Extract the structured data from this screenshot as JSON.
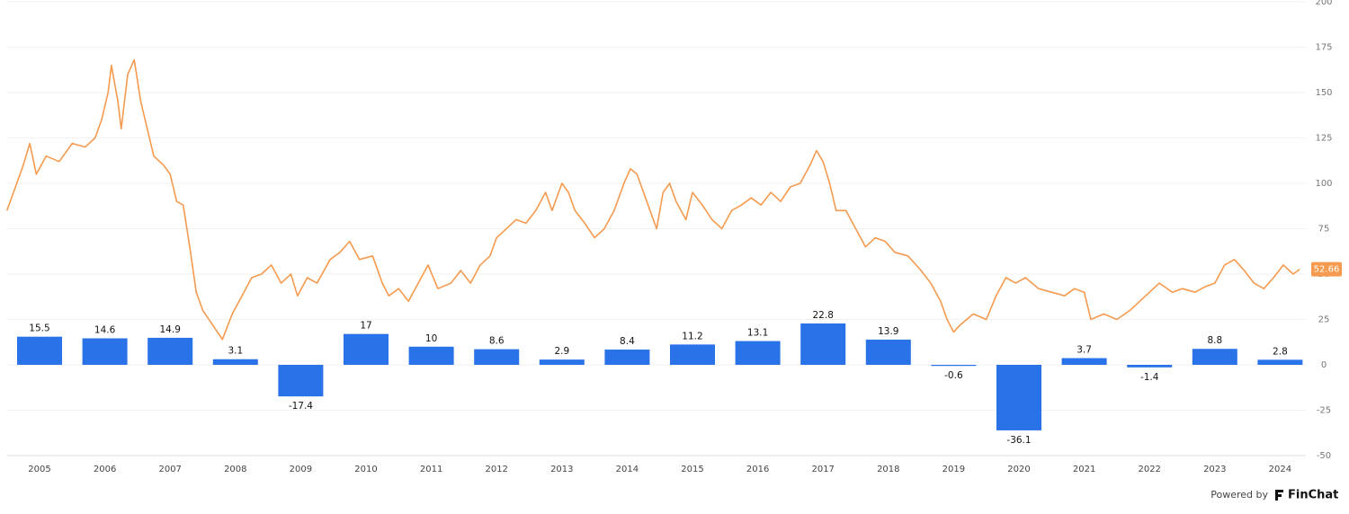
{
  "chart_data": {
    "type": "bar",
    "categories": [
      "2005",
      "2006",
      "2007",
      "2008",
      "2009",
      "2010",
      "2011",
      "2012",
      "2013",
      "2014",
      "2015",
      "2016",
      "2017",
      "2018",
      "2019",
      "2020",
      "2021",
      "2022",
      "2023",
      "2024"
    ],
    "values": [
      15.5,
      14.6,
      14.9,
      3.1,
      -17.4,
      17,
      10,
      8.6,
      2.9,
      8.4,
      11.2,
      13.1,
      22.8,
      13.9,
      -0.6,
      -36.1,
      3.7,
      -1.4,
      8.8,
      2.8
    ],
    "color": "#2a72e8",
    "line": {
      "type": "line",
      "color": "#f59a4f",
      "x": [
        2004.5,
        2004.6,
        2004.75,
        2004.85,
        2004.95,
        2005.1,
        2005.3,
        2005.5,
        2005.7,
        2005.85,
        2005.95,
        2006.05,
        2006.1,
        2006.2,
        2006.25,
        2006.35,
        2006.45,
        2006.55,
        2006.65,
        2006.75,
        2006.9,
        2007.0,
        2007.1,
        2007.2,
        2007.3,
        2007.4,
        2007.5,
        2007.65,
        2007.8,
        2007.95,
        2008.1,
        2008.25,
        2008.4,
        2008.55,
        2008.7,
        2008.85,
        2008.95,
        2009.1,
        2009.25,
        2009.45,
        2009.6,
        2009.75,
        2009.9,
        2010.1,
        2010.25,
        2010.35,
        2010.5,
        2010.65,
        2010.8,
        2010.95,
        2011.1,
        2011.3,
        2011.45,
        2011.6,
        2011.75,
        2011.9,
        2012.0,
        2012.15,
        2012.3,
        2012.45,
        2012.6,
        2012.75,
        2012.85,
        2013.0,
        2013.1,
        2013.2,
        2013.35,
        2013.5,
        2013.65,
        2013.8,
        2013.95,
        2014.05,
        2014.15,
        2014.3,
        2014.45,
        2014.55,
        2014.65,
        2014.75,
        2014.9,
        2015.0,
        2015.15,
        2015.3,
        2015.45,
        2015.6,
        2015.75,
        2015.9,
        2016.05,
        2016.2,
        2016.35,
        2016.5,
        2016.65,
        2016.8,
        2016.9,
        2017.0,
        2017.1,
        2017.2,
        2017.35,
        2017.5,
        2017.65,
        2017.8,
        2017.95,
        2018.1,
        2018.3,
        2018.5,
        2018.65,
        2018.8,
        2018.9,
        2019.0,
        2019.1,
        2019.3,
        2019.5,
        2019.65,
        2019.8,
        2019.95,
        2020.1,
        2020.3,
        2020.5,
        2020.7,
        2020.85,
        2021.0,
        2021.1,
        2021.3,
        2021.5,
        2021.7,
        2021.85,
        2022.0,
        2022.15,
        2022.35,
        2022.5,
        2022.7,
        2022.85,
        2023.0,
        2023.15,
        2023.3,
        2023.45,
        2023.6,
        2023.75,
        2023.9,
        2024.05,
        2024.2,
        2024.3
      ],
      "values": [
        85,
        95,
        110,
        122,
        105,
        115,
        112,
        122,
        120,
        125,
        135,
        150,
        165,
        145,
        130,
        160,
        168,
        145,
        130,
        115,
        110,
        105,
        90,
        88,
        65,
        40,
        30,
        22,
        14,
        28,
        38,
        48,
        50,
        55,
        45,
        50,
        38,
        48,
        45,
        58,
        62,
        68,
        58,
        60,
        45,
        38,
        42,
        35,
        45,
        55,
        42,
        45,
        52,
        45,
        55,
        60,
        70,
        75,
        80,
        78,
        85,
        95,
        85,
        100,
        95,
        85,
        78,
        70,
        75,
        85,
        100,
        108,
        105,
        90,
        75,
        95,
        100,
        90,
        80,
        95,
        88,
        80,
        75,
        85,
        88,
        92,
        88,
        95,
        90,
        98,
        100,
        110,
        118,
        112,
        100,
        85,
        85,
        75,
        65,
        70,
        68,
        62,
        60,
        52,
        45,
        35,
        25,
        18,
        22,
        28,
        25,
        38,
        48,
        45,
        48,
        42,
        40,
        38,
        42,
        40,
        25,
        28,
        25,
        30,
        35,
        40,
        45,
        40,
        42,
        40,
        43,
        45,
        55,
        58,
        52,
        45,
        42,
        48,
        55,
        50,
        52.66
      ],
      "last_value": 52.66
    },
    "ylim": [
      -50,
      200
    ],
    "yticks": [
      -50,
      -25,
      0,
      25,
      50,
      75,
      100,
      125,
      150,
      175,
      200
    ],
    "grid": true,
    "footer": {
      "powered": "Powered by",
      "brand": "FinChat"
    }
  }
}
